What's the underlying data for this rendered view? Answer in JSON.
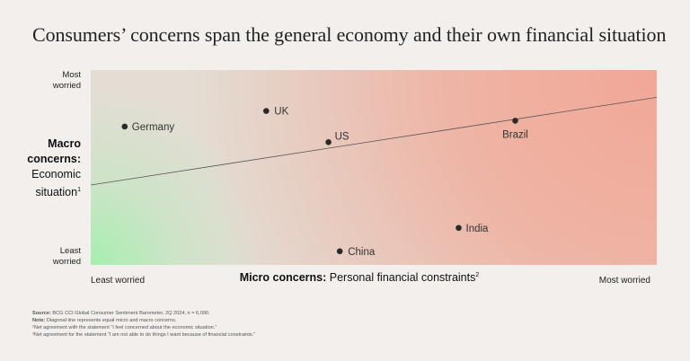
{
  "title": "Consumers’ concerns span the general economy and their own financial situation",
  "y_axis": {
    "label_bold": "Macro concerns:",
    "label_text": "Economic situation",
    "label_sup": "1",
    "top_tick": [
      "Most",
      "worried"
    ],
    "bottom_tick": [
      "Least",
      "worried"
    ]
  },
  "x_axis": {
    "label_bold": "Micro concerns:",
    "label_text": "Personal financial constraints",
    "label_sup": "2",
    "left_tick": "Least worried",
    "right_tick": "Most worried"
  },
  "footer": {
    "source_label": "Source:",
    "source_text": "BCG CCI Global Consumer Sentiment Barometer, 2Q 2024, n = 6,090.",
    "note_label": "Note:",
    "note_text": "Diagonal line represents equal micro and macro concerns.",
    "fn1": "¹Net agreement with the statement “I feel concerned about the economic situation.”",
    "fn2": "²Net agreement for the statement “I am not able to do things I want because of financial constraints.”"
  },
  "colors": {
    "worried": "#f2a796",
    "neutral": "#e3ddd4",
    "calm": "#a6efb0",
    "point": "#2a2a2a",
    "line": "#555555"
  },
  "chart_data": {
    "type": "scatter",
    "title": "Consumers’ concerns span the general economy and their own financial situation",
    "xlabel": "Micro concerns: Personal financial constraints",
    "ylabel": "Macro concerns: Economic situation",
    "xlim": [
      0,
      100
    ],
    "ylim": [
      0,
      100
    ],
    "x_tick_labels": [
      "Least worried",
      "Most worried"
    ],
    "y_tick_labels": [
      "Least worried",
      "Most worried"
    ],
    "points": [
      {
        "label": "Germany",
        "x": 6,
        "y": 71
      },
      {
        "label": "UK",
        "x": 31,
        "y": 79
      },
      {
        "label": "US",
        "x": 42,
        "y": 63
      },
      {
        "label": "Brazil",
        "x": 75,
        "y": 74
      },
      {
        "label": "India",
        "x": 65,
        "y": 19
      },
      {
        "label": "China",
        "x": 44,
        "y": 7
      }
    ],
    "trend_line": {
      "x": [
        0,
        100
      ],
      "y": [
        41,
        86
      ]
    },
    "grid": false,
    "legend": "none"
  }
}
